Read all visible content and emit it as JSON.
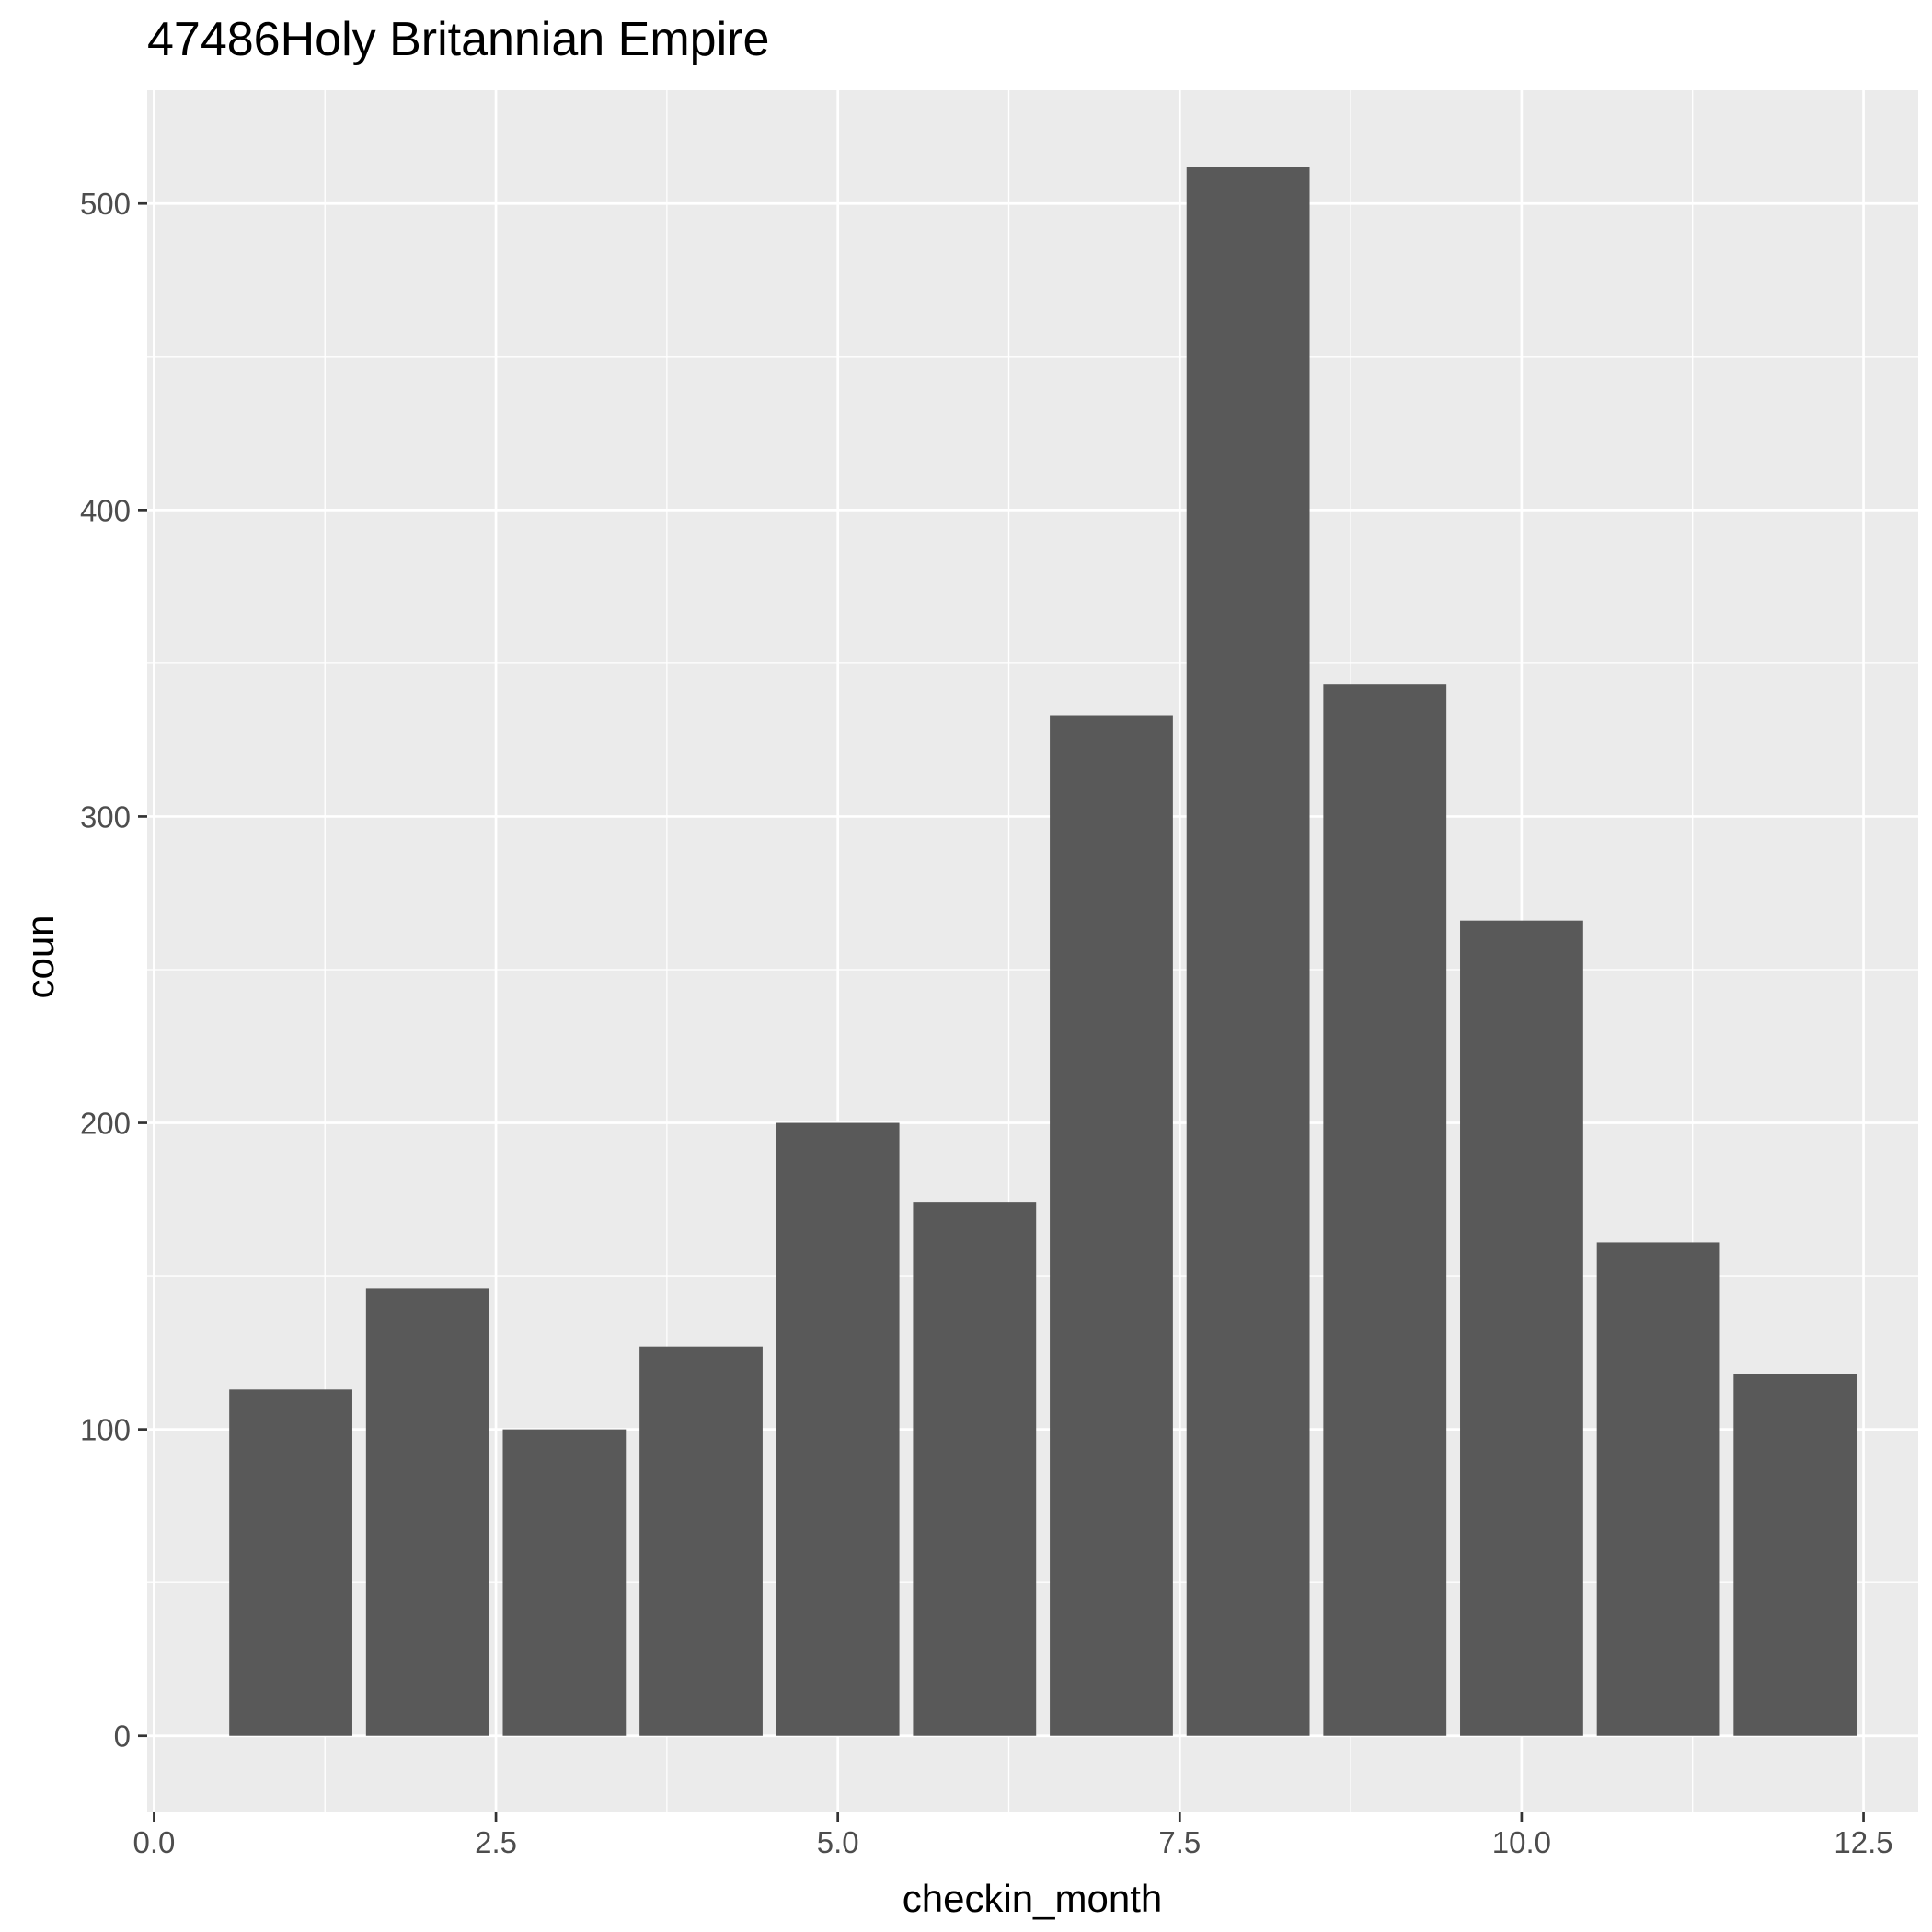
{
  "chart_data": {
    "type": "bar",
    "title": "47486Holy Britannian Empire",
    "xlabel": "checkin_month",
    "ylabel": "coun",
    "x": [
      1,
      2,
      3,
      4,
      5,
      6,
      7,
      8,
      9,
      10,
      11,
      12
    ],
    "values": [
      113,
      146,
      100,
      127,
      200,
      174,
      333,
      512,
      343,
      266,
      161,
      118
    ],
    "bar_width": 0.9,
    "xlim": [
      -0.05,
      12.9
    ],
    "ylim": [
      -25,
      537
    ],
    "x_ticks": [
      0.0,
      2.5,
      5.0,
      7.5,
      10.0,
      12.5
    ],
    "x_tick_labels": [
      "0.0",
      "2.5",
      "5.0",
      "7.5",
      "10.0",
      "12.5"
    ],
    "y_ticks": [
      0,
      100,
      200,
      300,
      400,
      500
    ],
    "y_tick_labels": [
      "0",
      "100",
      "200",
      "300",
      "400",
      "500"
    ],
    "grid": true,
    "legend": "none",
    "colors": {
      "panel_background": "#EBEBEB",
      "grid_line": "#FFFFFF",
      "bar_fill": "#595959",
      "tick_text": "#4D4D4D",
      "axis_tick": "#333333",
      "text": "#000000"
    }
  }
}
